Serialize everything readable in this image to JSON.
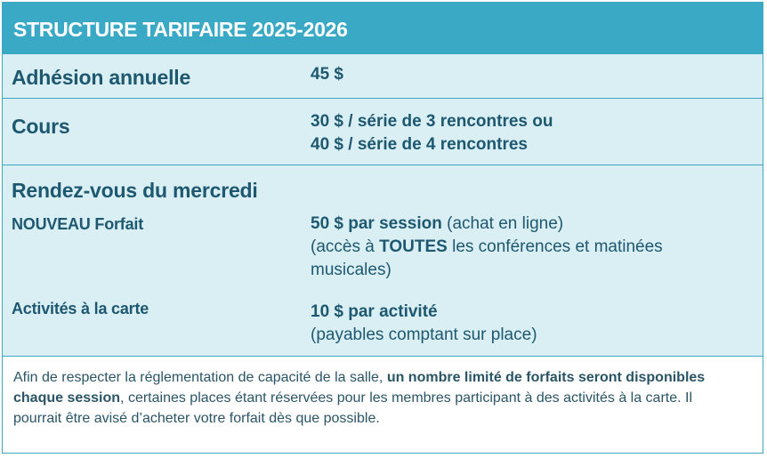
{
  "header": {
    "title": "STRUCTURE TARIFAIRE 2025-2026"
  },
  "membership": {
    "label": "Adhésion annuelle",
    "price": "45 $"
  },
  "courses": {
    "label": "Cours",
    "line1": "30 $ / série de 3 rencontres ou",
    "line2": "40 $ / série de 4 rencontres"
  },
  "wednesday": {
    "title": "Rendez-vous du mercredi",
    "package": {
      "label": "NOUVEAU Forfait",
      "price_bold": "50 $ par session",
      "price_rest": " (achat en ligne)",
      "access_pre": "(accès à ",
      "access_bold": "TOUTES",
      "access_post": " les conférences et matinées",
      "access_line2": "musicales)"
    },
    "a_la_carte": {
      "label": "Activités à la carte",
      "price": "10 $ par activité",
      "note": "(payables comptant sur place)"
    }
  },
  "footnote": {
    "part1": "Afin de respecter la réglementation de capacité de la salle, ",
    "bold": "un nombre limité de forfaits seront disponibles chaque session",
    "part2": ", certaines places étant réservées pour les membres participant à des activités à la carte. Il pourrait être avisé d’acheter votre forfait dès que possible."
  },
  "colors": {
    "header_bg": "#3aa9c6",
    "band_bg": "#d9eff4",
    "text": "#1d5870",
    "border": "#3ea8c3"
  }
}
